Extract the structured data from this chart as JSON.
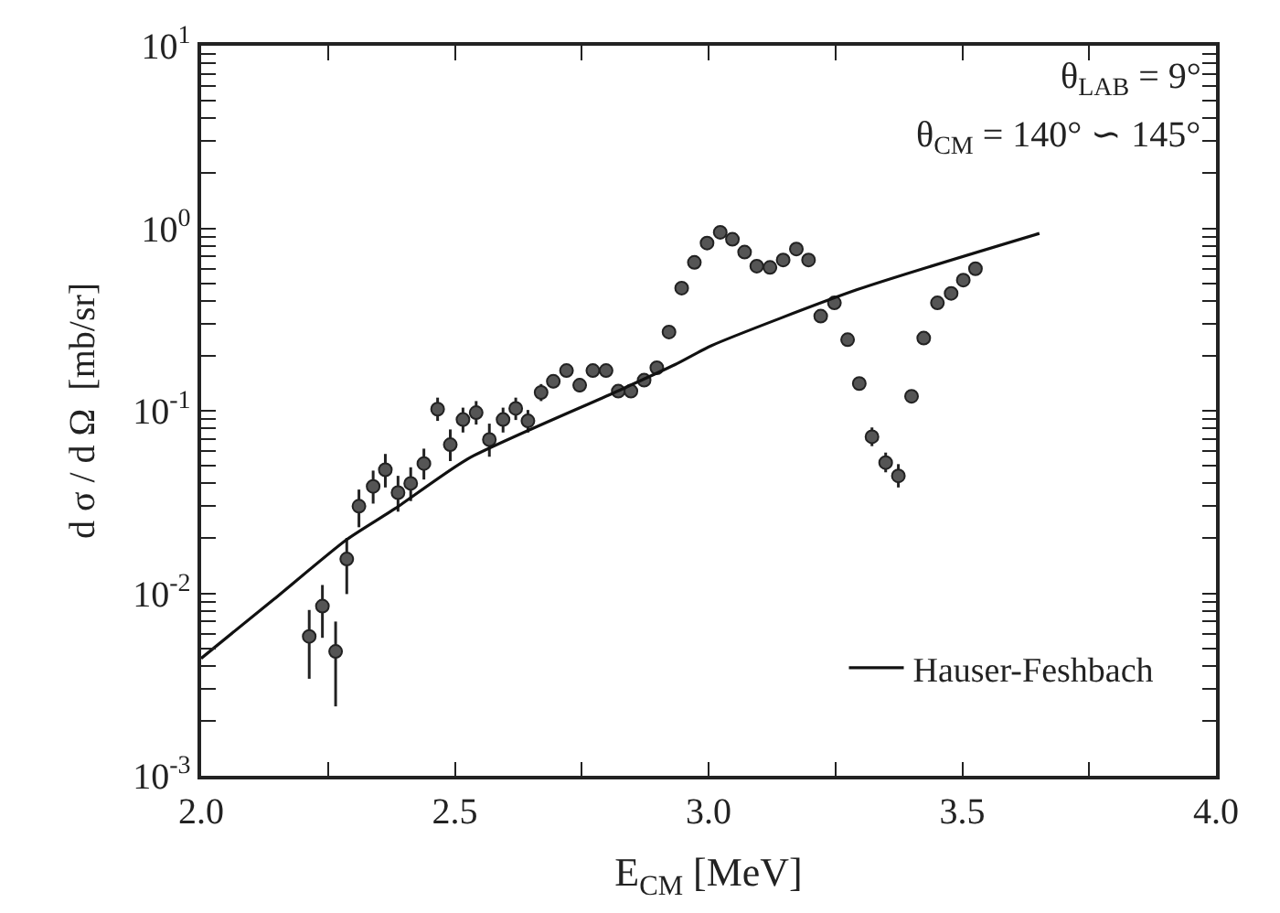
{
  "chart_data": {
    "type": "scatter",
    "xlabel": "E$_{CM}$ [MeV]",
    "ylabel": "d σ / d Ω  [mb/sr]",
    "annotations": [
      "θ$_{LAB}$ = 9°",
      "θ$_{CM}$ = 140° ∽ 145°"
    ],
    "log": "y",
    "xlim": [
      2.0,
      4.0
    ],
    "xticks": [
      {
        "value": 2.0,
        "label": "2.0"
      },
      {
        "value": 2.25,
        "label": null
      },
      {
        "value": 2.5,
        "label": "2.5"
      },
      {
        "value": 2.75,
        "label": null
      },
      {
        "value": 3.0,
        "label": "3.0"
      },
      {
        "value": 3.25,
        "label": null
      },
      {
        "value": 3.5,
        "label": "3.5"
      },
      {
        "value": 3.75,
        "label": null
      },
      {
        "value": 4.0,
        "label": "4.0"
      }
    ],
    "ylim": [
      0.001,
      10
    ],
    "yticks": [
      {
        "value": 0.001,
        "label": "10$^{-3}$"
      },
      {
        "value": 0.002,
        "label": null
      },
      {
        "value": 0.003,
        "label": null
      },
      {
        "value": 0.004,
        "label": null
      },
      {
        "value": 0.005,
        "label": null
      },
      {
        "value": 0.006,
        "label": null
      },
      {
        "value": 0.007,
        "label": null
      },
      {
        "value": 0.008,
        "label": null
      },
      {
        "value": 0.009,
        "label": null
      },
      {
        "value": 0.01,
        "label": "10$^{-2}$"
      },
      {
        "value": 0.02,
        "label": null
      },
      {
        "value": 0.03,
        "label": null
      },
      {
        "value": 0.04,
        "label": null
      },
      {
        "value": 0.05,
        "label": null
      },
      {
        "value": 0.06,
        "label": null
      },
      {
        "value": 0.07,
        "label": null
      },
      {
        "value": 0.08,
        "label": null
      },
      {
        "value": 0.09,
        "label": null
      },
      {
        "value": 0.1,
        "label": "10$^{-1}$"
      },
      {
        "value": 0.2,
        "label": null
      },
      {
        "value": 0.3,
        "label": null
      },
      {
        "value": 0.4,
        "label": null
      },
      {
        "value": 0.5,
        "label": null
      },
      {
        "value": 0.6,
        "label": null
      },
      {
        "value": 0.7,
        "label": null
      },
      {
        "value": 0.8,
        "label": null
      },
      {
        "value": 0.9,
        "label": null
      },
      {
        "value": 1,
        "label": "10$^{0}$"
      },
      {
        "value": 2,
        "label": null
      },
      {
        "value": 3,
        "label": null
      },
      {
        "value": 4,
        "label": null
      },
      {
        "value": 5,
        "label": null
      },
      {
        "value": 6,
        "label": null
      },
      {
        "value": 7,
        "label": null
      },
      {
        "value": 8,
        "label": null
      },
      {
        "value": 9,
        "label": null
      },
      {
        "value": 10,
        "label": "10$^{1}$"
      }
    ],
    "legend": "bottom right",
    "series": [
      {
        "color": "#555555",
        "marker": "circle",
        "x": [
          2.213,
          2.239,
          2.265,
          2.287,
          2.311,
          2.339,
          2.363,
          2.388,
          2.413,
          2.439,
          2.466,
          2.491,
          2.516,
          2.542,
          2.568,
          2.595,
          2.62,
          2.644,
          2.67,
          2.694,
          2.72,
          2.746,
          2.772,
          2.798,
          2.822,
          2.847,
          2.873,
          2.898,
          2.922,
          2.947,
          2.972,
          2.997,
          3.023,
          3.047,
          3.071,
          3.095,
          3.121,
          3.147,
          3.173,
          3.197,
          3.221,
          3.248,
          3.274,
          3.297,
          3.322,
          3.349,
          3.374,
          3.4,
          3.424,
          3.451,
          3.478,
          3.502,
          3.526
        ],
        "values": [
          0.0058,
          0.0085,
          0.0048,
          0.0154,
          0.03,
          0.0385,
          0.0475,
          0.0356,
          0.04,
          0.0514,
          0.102,
          0.0652,
          0.0895,
          0.0976,
          0.0695,
          0.0895,
          0.103,
          0.088,
          0.126,
          0.145,
          0.166,
          0.138,
          0.166,
          0.166,
          0.128,
          0.128,
          0.147,
          0.172,
          0.27,
          0.47,
          0.65,
          0.83,
          0.95,
          0.87,
          0.74,
          0.62,
          0.61,
          0.67,
          0.77,
          0.67,
          0.33,
          0.39,
          0.245,
          0.141,
          0.072,
          0.052,
          0.044,
          0.12,
          0.25,
          0.39,
          0.44,
          0.52,
          0.6
        ],
        "errors": [
          [
            0.0034,
            0.0081
          ],
          [
            0.0057,
            0.0111
          ],
          [
            0.0024,
            0.007
          ],
          [
            0.0099,
            0.0201
          ],
          [
            0.023,
            0.037
          ],
          [
            0.031,
            0.047
          ],
          [
            0.038,
            0.058
          ],
          [
            0.028,
            0.044
          ],
          [
            0.032,
            0.049
          ],
          [
            0.042,
            0.062
          ],
          [
            0.088,
            0.118
          ],
          [
            0.053,
            0.079
          ],
          [
            0.076,
            0.104
          ],
          [
            0.084,
            0.113
          ],
          [
            0.056,
            0.085
          ],
          [
            0.076,
            0.104
          ],
          [
            0.089,
            0.118
          ],
          [
            0.076,
            0.101
          ],
          [
            0.113,
            0.14
          ],
          [
            0.133,
            0.158
          ],
          [
            0.153,
            0.18
          ],
          [
            0.126,
            0.151
          ],
          [
            0.153,
            0.18
          ],
          [
            0.153,
            0.18
          ],
          [
            0.118,
            0.139
          ],
          [
            0.118,
            0.139
          ],
          [
            0.136,
            0.159
          ],
          [
            0.161,
            0.184
          ],
          null,
          null,
          null,
          null,
          null,
          null,
          null,
          null,
          null,
          null,
          null,
          null,
          null,
          null,
          null,
          null,
          [
            0.064,
            0.081
          ],
          [
            0.046,
            0.059
          ],
          [
            0.038,
            0.051
          ],
          [
            0.111,
            0.13
          ],
          null,
          null,
          null,
          null,
          null
        ]
      },
      {
        "type": "line",
        "name": "Hauser-Feshbach",
        "color": "#111111",
        "line_style": "solid",
        "x": [
          2.0,
          2.144,
          2.287,
          2.383,
          2.527,
          2.814,
          2.934,
          3.005,
          3.293,
          3.652
        ],
        "values": [
          0.0044,
          0.0093,
          0.0197,
          0.0292,
          0.0548,
          0.1256,
          0.179,
          0.227,
          0.461,
          0.937
        ]
      }
    ]
  }
}
